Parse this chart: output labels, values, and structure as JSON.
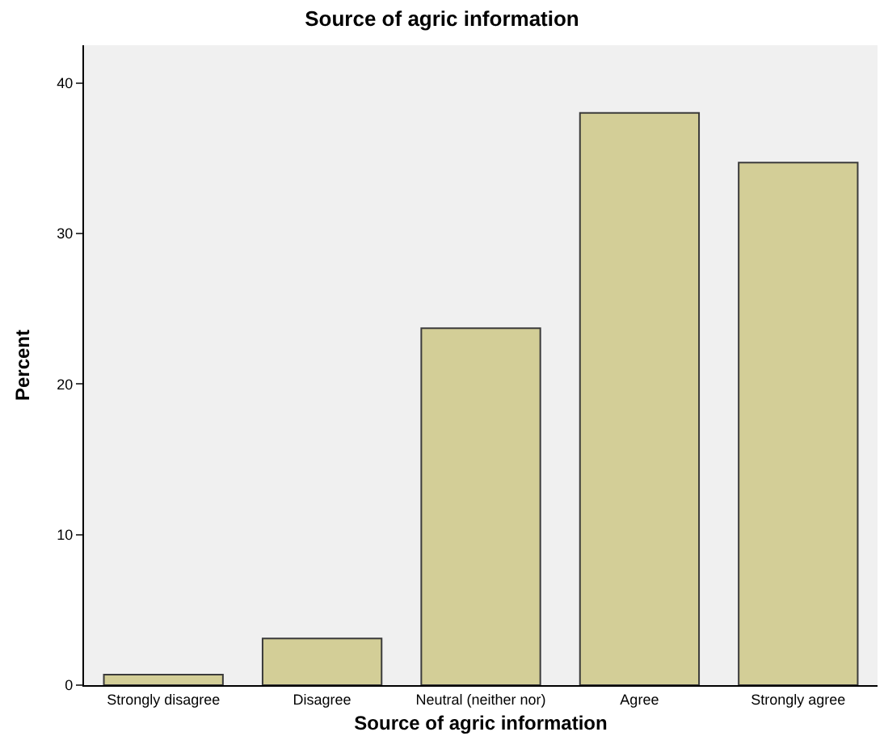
{
  "chart_data": {
    "type": "bar",
    "title": "Source of agric information",
    "xlabel": "Source of agric information",
    "ylabel": "Percent",
    "categories": [
      "Strongly disagree",
      "Disagree",
      "Neutral (neither nor)",
      "Agree",
      "Strongly agree"
    ],
    "values": [
      0.7,
      3.1,
      23.7,
      38.0,
      34.7
    ],
    "color": "#d3ce97",
    "ylim": [
      0,
      42.5
    ],
    "yticks": [
      0,
      10,
      20,
      30,
      40
    ],
    "grid": false
  }
}
